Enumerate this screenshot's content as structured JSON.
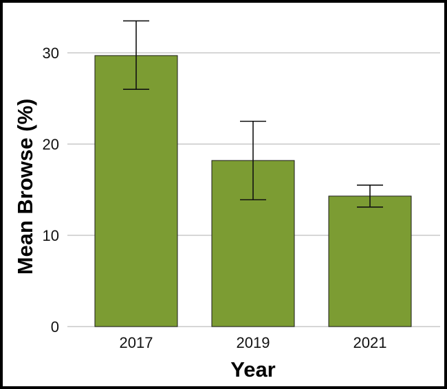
{
  "chart_data": {
    "type": "bar",
    "categories": [
      "2017",
      "2019",
      "2021"
    ],
    "values": [
      29.7,
      18.2,
      14.3
    ],
    "error_low": [
      26.0,
      13.9,
      13.1
    ],
    "error_high": [
      33.5,
      22.5,
      15.5
    ],
    "xlabel": "Year",
    "ylabel": "Mean Browse (%)",
    "ylim": [
      0,
      34
    ],
    "yticks": [
      "0",
      "10",
      "20",
      "30"
    ],
    "grid": "horizontal",
    "colors": {
      "bar": "#7c9c33",
      "bar_stroke": "#1a1a1a",
      "grid": "#c8c8c8"
    }
  }
}
